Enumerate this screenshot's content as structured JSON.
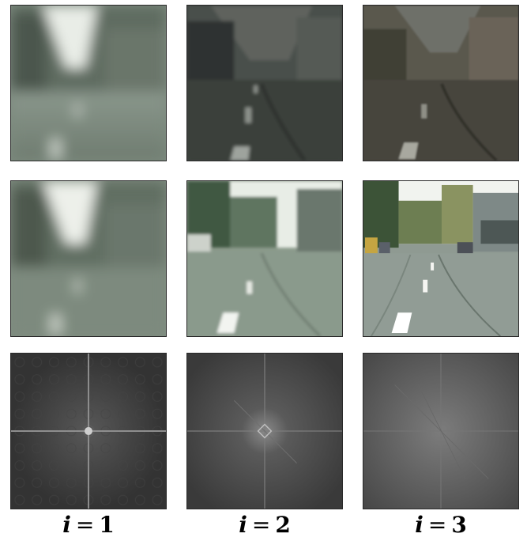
{
  "columns": [
    {
      "variable": "i",
      "equals": "=",
      "value": "1"
    },
    {
      "variable": "i",
      "equals": "=",
      "value": "2"
    },
    {
      "variable": "i",
      "equals": "=",
      "value": "3"
    }
  ],
  "rows": [
    {
      "content": "feature-reconstruction"
    },
    {
      "content": "rgb-output"
    },
    {
      "content": "frequency-spectrum"
    }
  ],
  "colors": {
    "border": "#2a2a2a",
    "road": "#7f8d80",
    "sky": "#eef1ec",
    "spectrum_bg": "#3a3a3a"
  }
}
